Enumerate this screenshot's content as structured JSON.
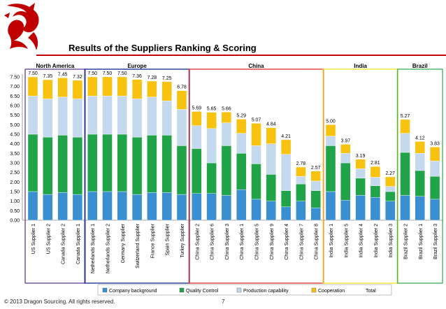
{
  "page": {
    "title": "Results of the Suppliers Ranking & Scoring",
    "copyright": "© 2013 Dragon Sourcing. All rights reserved.",
    "page_number": "7"
  },
  "logo": {
    "icon": "dragon-logo-icon",
    "color": "#c00000"
  },
  "chart_data": {
    "type": "bar",
    "stacked": true,
    "ylim": [
      0,
      7.5
    ],
    "yticks": [
      0.0,
      0.5,
      1.0,
      1.5,
      2.0,
      2.5,
      3.0,
      3.5,
      4.0,
      4.5,
      5.0,
      5.5,
      6.0,
      6.5,
      7.0,
      7.5
    ],
    "grid": false,
    "legend_position": "bottom",
    "categories": [
      "US Supplier 1",
      "US Supplier 2",
      "Canada Supplier 2",
      "Canada Supplier 1",
      "Netherlands Supplier 1",
      "Netherlands Supplier 2",
      "Germany Supplier",
      "Switzerland Supplier",
      "France Supplier",
      "Spain Supplier",
      "Turkey Supplier",
      "China Supplier 2",
      "China Supplier 6",
      "China Supplier 3",
      "China Supplier 1",
      "China Supplier 5",
      "China Supplier 9",
      "China Supplier 4",
      "China Supplier 7",
      "China Supplier 8",
      "India Supplier 1",
      "India Supplier 5",
      "India Supplier 4",
      "India Supplier 2",
      "India Supplier 3",
      "Brazil Supplier 2",
      "Brazil Supplier 1",
      "Brazil Supplier 3"
    ],
    "totals": [
      "7.50",
      "7.35",
      "7.45",
      "7.32",
      "7.50",
      "7.50",
      "7.50",
      "7.36",
      "7.28",
      "7.25",
      "6.78",
      "5.69",
      "5.65",
      "5.66",
      "5.29",
      "5.07",
      "4.84",
      "4.21",
      "2.78",
      "2.57",
      "5.00",
      "3.97",
      "3.19",
      "2.81",
      "2.27",
      "5.27",
      "4.12",
      "3.83"
    ],
    "series": [
      {
        "name": "Company background",
        "color": "#3a8fd0",
        "values": [
          1.5,
          1.35,
          1.45,
          1.35,
          1.5,
          1.5,
          1.5,
          1.35,
          1.45,
          1.45,
          1.35,
          1.4,
          1.4,
          1.3,
          1.6,
          1.1,
          1.0,
          0.7,
          1.0,
          0.65,
          1.5,
          1.05,
          1.3,
          1.2,
          1.0,
          1.3,
          1.25,
          1.1
        ]
      },
      {
        "name": "Quality Control",
        "color": "#21a34a",
        "values": [
          3.0,
          3.0,
          3.0,
          3.0,
          3.0,
          3.0,
          3.0,
          3.0,
          3.0,
          3.0,
          2.55,
          2.35,
          1.6,
          2.6,
          1.9,
          1.85,
          1.4,
          0.85,
          0.9,
          0.9,
          2.4,
          1.95,
          0.9,
          0.6,
          0.5,
          2.25,
          1.35,
          1.2
        ]
      },
      {
        "name": "Production capability",
        "color": "#c5d9ee",
        "values": [
          2.0,
          2.0,
          2.0,
          2.0,
          2.0,
          2.0,
          2.0,
          2.0,
          2.0,
          1.8,
          1.9,
          1.2,
          1.8,
          1.2,
          1.05,
          0.95,
          1.6,
          1.9,
          0.4,
          0.5,
          0.5,
          0.5,
          0.5,
          0.45,
          0.27,
          1.0,
          0.9,
          0.8
        ]
      },
      {
        "name": "Cooperation",
        "color": "#f7c210",
        "values": [
          1.0,
          1.0,
          1.0,
          0.97,
          1.0,
          1.0,
          1.0,
          1.01,
          0.83,
          1.0,
          0.98,
          0.74,
          0.85,
          0.56,
          0.74,
          1.17,
          0.84,
          0.76,
          0.48,
          0.52,
          0.6,
          0.47,
          0.49,
          0.56,
          0.5,
          0.72,
          0.62,
          0.73
        ]
      }
    ],
    "legend": [
      "Company background",
      "Quality Control",
      "Production capability",
      "Cooperation",
      "Total"
    ],
    "groups": [
      {
        "name": "North America",
        "start": 0,
        "count": 4,
        "border": "#6a4c9c"
      },
      {
        "name": "Europe",
        "start": 4,
        "count": 7,
        "border": "#1f3a93"
      },
      {
        "name": "China",
        "start": 11,
        "count": 9,
        "border": "#e03c3c"
      },
      {
        "name": "India",
        "start": 20,
        "count": 5,
        "border": "#f2e62e"
      },
      {
        "name": "Brazil",
        "start": 25,
        "count": 3,
        "border": "#4cb26a"
      }
    ]
  }
}
